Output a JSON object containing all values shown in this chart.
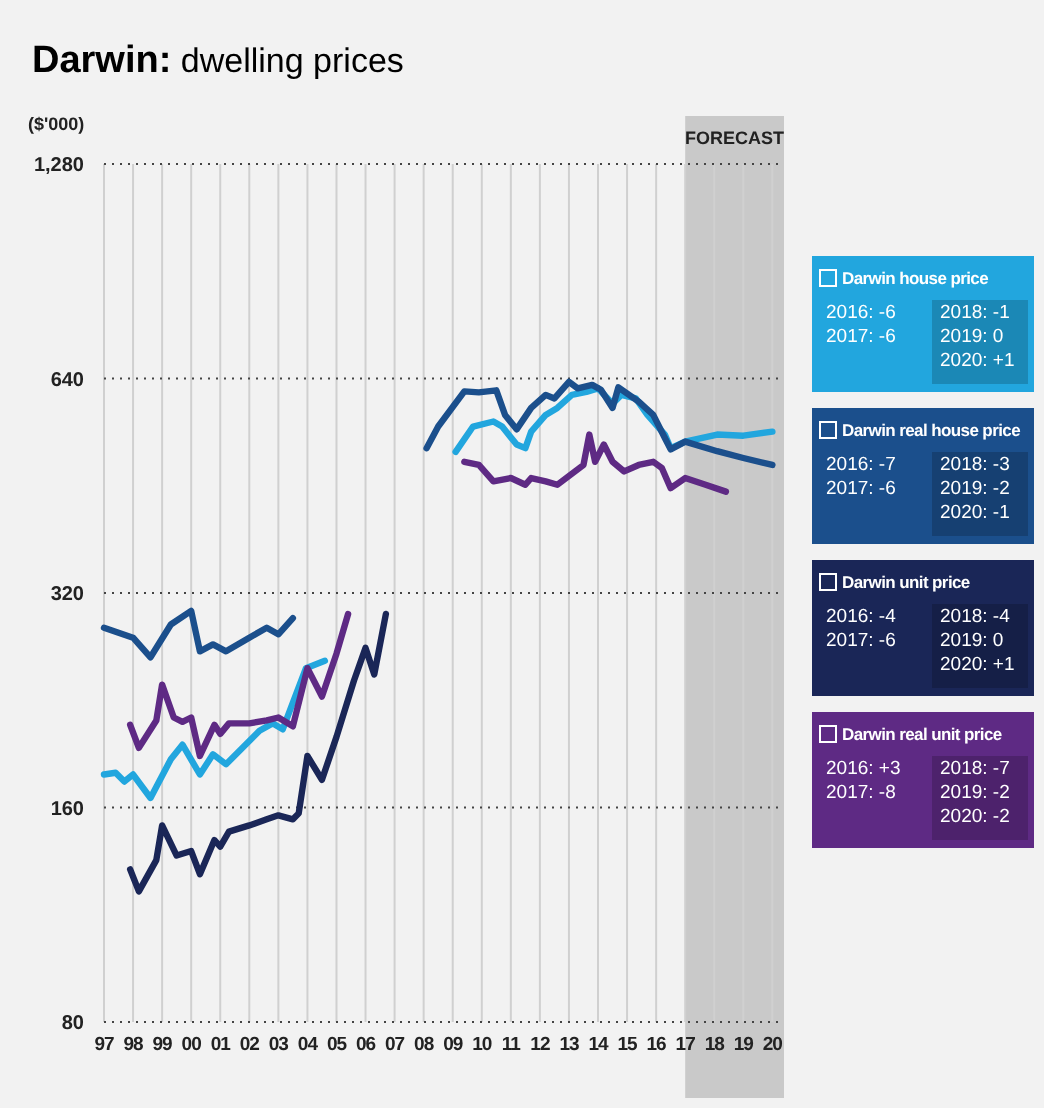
{
  "chart_data": {
    "type": "line",
    "title": "Darwin: dwelling prices",
    "ylabel": "($'000)",
    "log": "y",
    "grid": true,
    "legend": "right",
    "marker": "none",
    "line_style": "solid",
    "xlim": [
      1997,
      2020.4
    ],
    "ylim": [
      80,
      1280
    ],
    "xticks": [
      {
        "value": 1997,
        "label": "97"
      },
      {
        "value": 1998,
        "label": "98"
      },
      {
        "value": 1999,
        "label": "99"
      },
      {
        "value": 2000,
        "label": "00"
      },
      {
        "value": 2001,
        "label": "01"
      },
      {
        "value": 2002,
        "label": "02"
      },
      {
        "value": 2003,
        "label": "03"
      },
      {
        "value": 2004,
        "label": "04"
      },
      {
        "value": 2005,
        "label": "05"
      },
      {
        "value": 2006,
        "label": "06"
      },
      {
        "value": 2007,
        "label": "07"
      },
      {
        "value": 2008,
        "label": "08"
      },
      {
        "value": 2009,
        "label": "09"
      },
      {
        "value": 2010,
        "label": "10"
      },
      {
        "value": 2011,
        "label": "11"
      },
      {
        "value": 2012,
        "label": "12"
      },
      {
        "value": 2013,
        "label": "13"
      },
      {
        "value": 2014,
        "label": "14"
      },
      {
        "value": 2015,
        "label": "15"
      },
      {
        "value": 2016,
        "label": "16"
      },
      {
        "value": 2017,
        "label": "17"
      },
      {
        "value": 2018,
        "label": "18"
      },
      {
        "value": 2019,
        "label": "19"
      },
      {
        "value": 2020,
        "label": "20"
      }
    ],
    "yticks": [
      80,
      160,
      320,
      640,
      {
        "value": 1280,
        "label": "1,280"
      }
    ],
    "bands": [
      {
        "axis": "x",
        "from": 2017,
        "to": 2020.4,
        "label": "FORECAST",
        "color": "#c9c9c9"
      }
    ],
    "series": [
      {
        "name": "Darwin house price",
        "color": "#22a6de",
        "x": [
          1997,
          1997.4,
          1997.7,
          1998,
          1998.6,
          1999.3,
          1999.7,
          2000.3,
          2000.75,
          2001.2,
          2002.35,
          2002.8,
          2003.15,
          2003.95,
          2004.6,
          2004.9,
          2009.1,
          2009.7,
          2010.4,
          2010.7,
          2011.2,
          2011.5,
          2011.7,
          2012.2,
          2012.6,
          2013.1,
          2013.6,
          2014.0,
          2014.5,
          2014.8,
          2015.3,
          2015.7,
          2016.3,
          2016.5,
          2017.0,
          2018.1,
          2019.0,
          2020.0
        ],
        "values": [
          178,
          179,
          174,
          178,
          165,
          187,
          196,
          178,
          190,
          184,
          205,
          210,
          206,
          251,
          257,
          null,
          505,
          548,
          557,
          548,
          517,
          511,
          539,
          569,
          582,
          607,
          613,
          620,
          590,
          607,
          600,
          569,
          534,
          511,
          522,
          534,
          532,
          539
        ]
      },
      {
        "name": "Darwin real house price",
        "color": "#1b4f8c",
        "x": [
          1997,
          1998,
          1998.6,
          1999.3,
          2000,
          2000.3,
          2000.75,
          2001.2,
          2002,
          2002.6,
          2003,
          2003.5,
          2003.8,
          2008.1,
          2008.5,
          2009.4,
          2009.9,
          2010.5,
          2010.8,
          2011.2,
          2011.7,
          2012.2,
          2012.5,
          2013,
          2013.3,
          2013.8,
          2014.1,
          2014.5,
          2014.7,
          2015.4,
          2015.9,
          2016.3,
          2016.5,
          2017,
          2018.1,
          2019,
          2020
        ],
        "values": [
          286,
          277,
          260,
          289,
          302,
          265,
          271,
          265,
          277,
          286,
          280,
          295,
          null,
          511,
          548,
          614,
          612,
          616,
          569,
          543,
          582,
          607,
          600,
          633,
          620,
          627,
          617,
          582,
          622,
          594,
          569,
          528,
          509,
          522,
          506,
          495,
          484
        ]
      },
      {
        "name": "Darwin unit price",
        "color": "#1a2657",
        "x": [
          1997.9,
          1998.2,
          1998.8,
          1999,
          1999.5,
          2000,
          2000.3,
          2000.8,
          2001,
          2001.3,
          2002,
          2002.6,
          2003,
          2003.5,
          2003.7,
          2004,
          2004.5,
          2005,
          2005.6,
          2006,
          2006.3,
          2006.7
        ],
        "values": [
          131,
          122,
          135,
          151,
          137,
          139,
          129,
          144,
          141,
          148,
          151,
          154,
          156,
          154,
          157,
          189,
          175,
          201,
          241,
          268,
          246,
          299
        ]
      },
      {
        "name": "Darwin real unit price",
        "color": "#5e2a84",
        "x": [
          1997.9,
          1998.2,
          1998.8,
          1999,
          1999.4,
          1999.7,
          2000,
          2000.3,
          2000.8,
          2001,
          2001.3,
          2002,
          2002.6,
          2003,
          2003.5,
          2004,
          2004.5,
          2005,
          2005.4,
          2005.6,
          2009.4,
          2009.9,
          2010.4,
          2011,
          2011.5,
          2011.7,
          2012.2,
          2012.6,
          2013.5,
          2013.7,
          2013.9,
          2014.2,
          2014.5,
          2014.9,
          2015.4,
          2015.9,
          2016.2,
          2016.5,
          2017,
          2017.7,
          2018.4
        ],
        "values": [
          209,
          194,
          212,
          238,
          214,
          211,
          214,
          189,
          209,
          203,
          210,
          210,
          212,
          214,
          208,
          251,
          229,
          263,
          299,
          null,
          489,
          484,
          459,
          464,
          454,
          464,
          459,
          454,
          484,
          534,
          489,
          517,
          489,
          474,
          484,
          489,
          479,
          449,
          464,
          454,
          444
        ]
      }
    ],
    "annotations": [
      "2016: -6",
      "2017: -6",
      "2018: -1",
      "2019: 0",
      "2020: +1",
      "2016: -7",
      "2017: -6",
      "2018: -3",
      "2019: -2",
      "2020: -1",
      "2016: -4",
      "2017: -6",
      "2018: -4",
      "2019: 0",
      "2020: +1",
      "2016: +3",
      "2017: -8",
      "2018: -7",
      "2019: -2",
      "2020: -2"
    ]
  }
}
